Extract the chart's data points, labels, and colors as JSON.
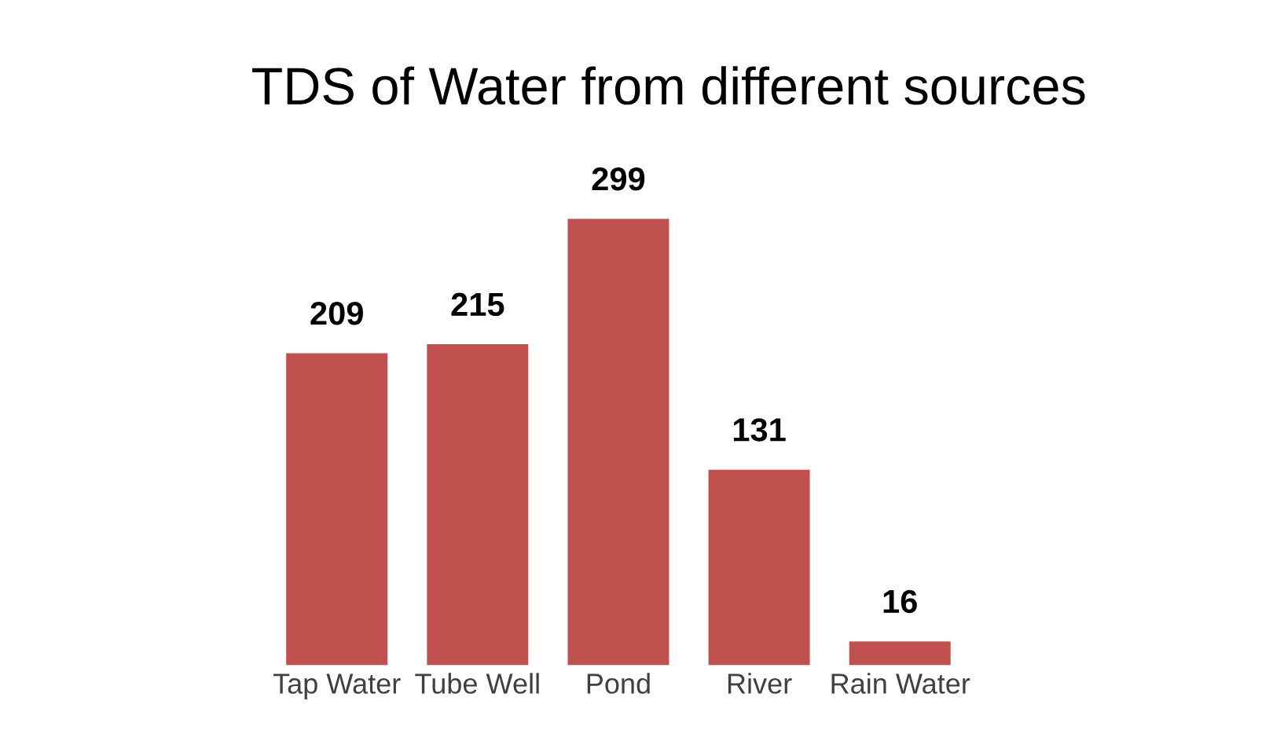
{
  "chart_data": {
    "type": "bar",
    "title": "TDS of Water from different sources",
    "categories": [
      "Tap Water",
      "Tube Well",
      "Pond",
      "River",
      "Rain Water"
    ],
    "values": [
      209,
      215,
      299,
      131,
      16
    ],
    "color": "#c0504d",
    "data_labels": true,
    "grid": false,
    "legend": false
  }
}
